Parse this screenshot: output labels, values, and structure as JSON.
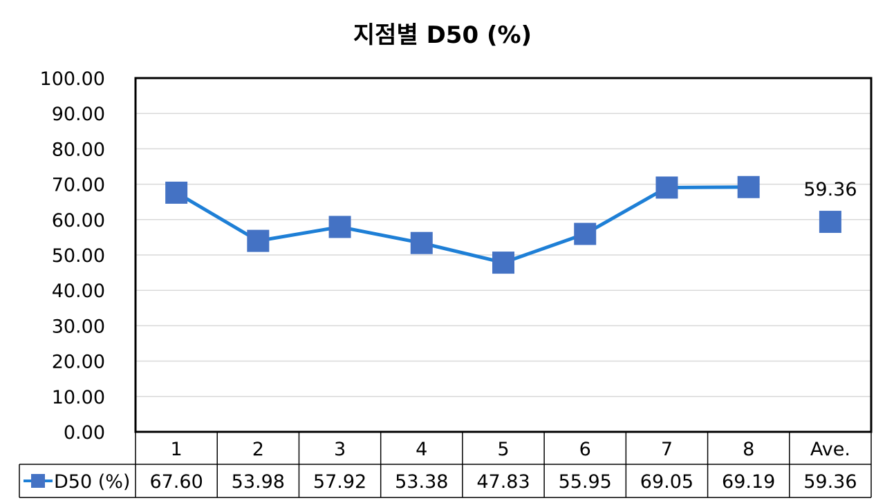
{
  "chart_data": {
    "type": "line",
    "title": "지점별 D50 (%)",
    "categories": [
      "1",
      "2",
      "3",
      "4",
      "5",
      "6",
      "7",
      "8",
      "Ave."
    ],
    "series": [
      {
        "name": "D50 (%)",
        "values": [
          67.6,
          53.98,
          57.92,
          53.38,
          47.83,
          55.95,
          69.05,
          69.19,
          59.36
        ],
        "value_labels": [
          "67.60",
          "53.98",
          "57.92",
          "53.38",
          "47.83",
          "55.95",
          "69.05",
          "69.19",
          "59.36"
        ],
        "connected_points": 8,
        "data_label_index": 8
      }
    ],
    "ylim": [
      0,
      100
    ],
    "y_ticks": [
      "0.00",
      "10.00",
      "20.00",
      "30.00",
      "40.00",
      "50.00",
      "60.00",
      "70.00",
      "80.00",
      "90.00",
      "100.00"
    ],
    "grid": true,
    "legend": "data-table",
    "colors": {
      "line": "#1e7fd6",
      "marker": "#4472c4",
      "grid": "#d9d9d9",
      "axis": "#000000"
    }
  }
}
